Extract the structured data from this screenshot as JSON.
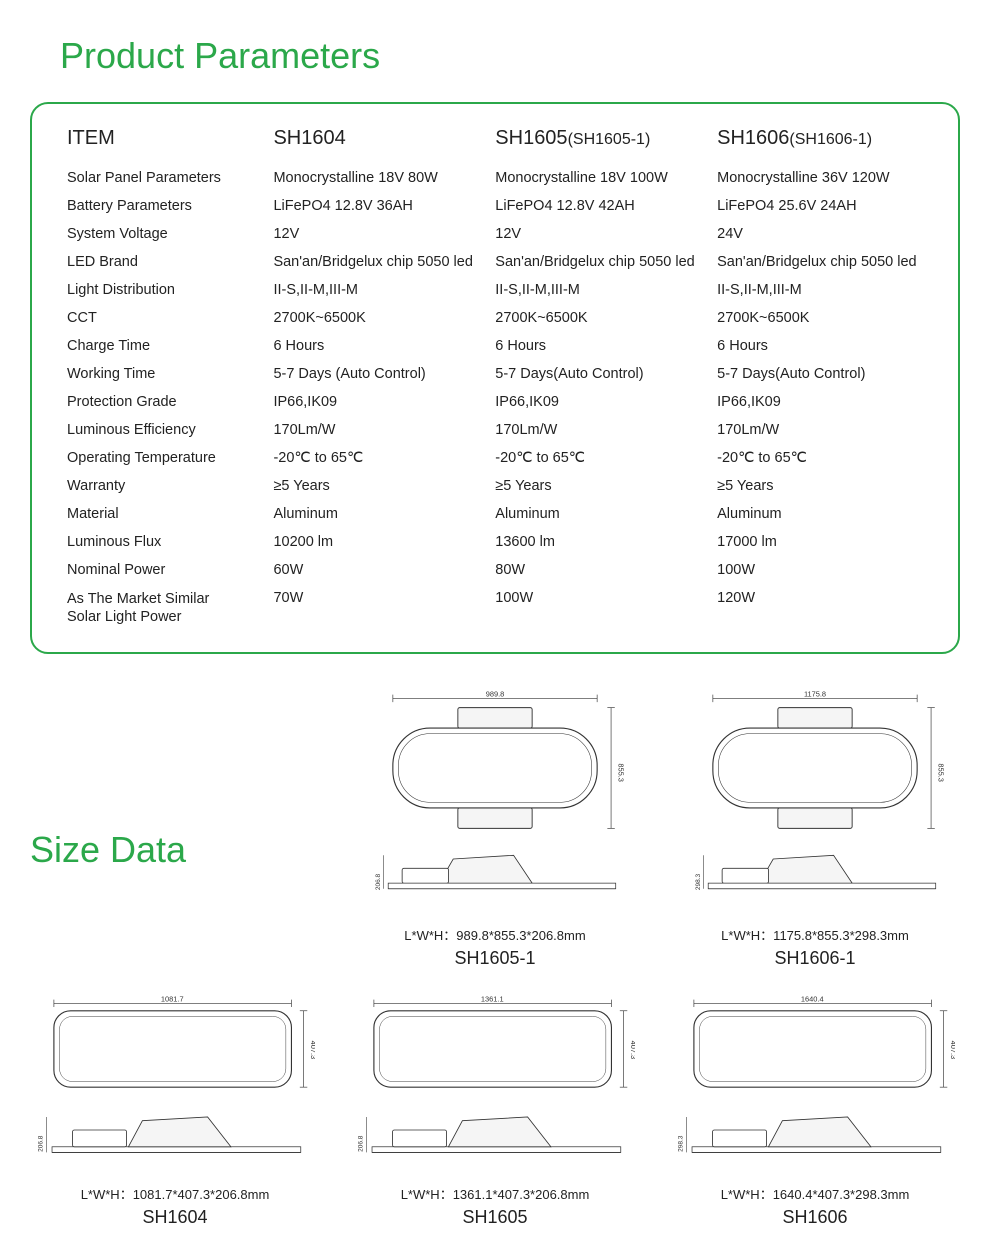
{
  "headings": {
    "product_parameters": "Product Parameters",
    "size_data": "Size Data"
  },
  "colors": {
    "accent": "#2ba84a",
    "border": "#2ba84a",
    "text": "#222222",
    "diagram_stroke": "#333333",
    "diagram_fill": "#f5f5f5"
  },
  "table": {
    "header": {
      "item": "ITEM",
      "col1": "SH1604",
      "col2_main": "SH1605",
      "col2_suffix": "(SH1605-1)",
      "col3_main": "SH1606",
      "col3_suffix": "(SH1606-1)"
    },
    "rows": [
      {
        "label": "Solar Panel Parameters",
        "c1": "Monocrystalline 18V 80W",
        "c2": "Monocrystalline 18V 100W",
        "c3": "Monocrystalline 36V 120W"
      },
      {
        "label": "Battery Parameters",
        "c1": "LiFePO4  12.8V 36AH",
        "c2": "LiFePO4   12.8V 42AH",
        "c3": "LiFePO4    25.6V 24AH"
      },
      {
        "label": "System Voltage",
        "c1": "12V",
        "c2": "12V",
        "c3": "24V"
      },
      {
        "label": "LED Brand",
        "c1": "San'an/Bridgelux chip 5050 led",
        "c2": "San'an/Bridgelux chip 5050 led",
        "c3": "San'an/Bridgelux chip 5050 led"
      },
      {
        "label": "Light Distribution",
        "c1": "II-S,II-M,III-M",
        "c2": "II-S,II-M,III-M",
        "c3": "II-S,II-M,III-M"
      },
      {
        "label": "CCT",
        "c1": "2700K~6500K",
        "c2": "2700K~6500K",
        "c3": "2700K~6500K"
      },
      {
        "label": "Charge Time",
        "c1": "6 Hours",
        "c2": "6 Hours",
        "c3": "6 Hours"
      },
      {
        "label": "Working Time",
        "c1": "5-7 Days (Auto Control)",
        "c2": "5-7 Days(Auto Control)",
        "c3": "5-7 Days(Auto Control)"
      },
      {
        "label": "Protection Grade",
        "c1": "IP66,IK09",
        "c2": "IP66,IK09",
        "c3": "IP66,IK09"
      },
      {
        "label": "Luminous Efficiency",
        "c1": "170Lm/W",
        "c2": "170Lm/W",
        "c3": "170Lm/W"
      },
      {
        "label": "Operating Temperature",
        "c1": "-20℃ to 65℃",
        "c2": "-20℃ to 65℃",
        "c3": "-20℃ to 65℃"
      },
      {
        "label": "Warranty",
        "c1": "≥5 Years",
        "c2": "≥5 Years",
        "c3": "≥5 Years"
      },
      {
        "label": "Material",
        "c1": "Aluminum",
        "c2": "Aluminum",
        "c3": "Aluminum"
      },
      {
        "label": "Luminous Flux",
        "c1": "10200 lm",
        "c2": "13600 lm",
        "c3": "17000 lm"
      },
      {
        "label": "Nominal Power",
        "c1": "60W",
        "c2": "80W",
        "c3": "100W"
      },
      {
        "label": "As The Market Similar\nSolar Light Power",
        "c1": "70W",
        "c2": "100W",
        "c3": "120W"
      }
    ]
  },
  "size_data": {
    "top_row": [
      {
        "model": "SH1605-1",
        "dim_label": "L*W*H：989.8*855.3*206.8mm",
        "top_dim": "989.8",
        "side_dim": "855.3",
        "side_dim2": "206.8",
        "shape": "panel"
      },
      {
        "model": "SH1606-1",
        "dim_label": "L*W*H：1175.8*855.3*298.3mm",
        "top_dim": "1175.8",
        "side_dim": "855.3",
        "side_dim2": "298.3",
        "shape": "panel"
      }
    ],
    "bottom_row": [
      {
        "model": "SH1604",
        "dim_label": "L*W*H：1081.7*407.3*206.8mm",
        "top_dim": "1081.7",
        "side_dim": "407.3",
        "side_dim2": "206.8",
        "shape": "bar"
      },
      {
        "model": "SH1605",
        "dim_label": "L*W*H：1361.1*407.3*206.8mm",
        "top_dim": "1361.1",
        "side_dim": "407.3",
        "side_dim2": "206.8",
        "shape": "bar"
      },
      {
        "model": "SH1606",
        "dim_label": "L*W*H：1640.4*407.3*298.3mm",
        "top_dim": "1640.4",
        "side_dim": "407.3",
        "side_dim2": "298.3",
        "shape": "bar"
      }
    ]
  }
}
